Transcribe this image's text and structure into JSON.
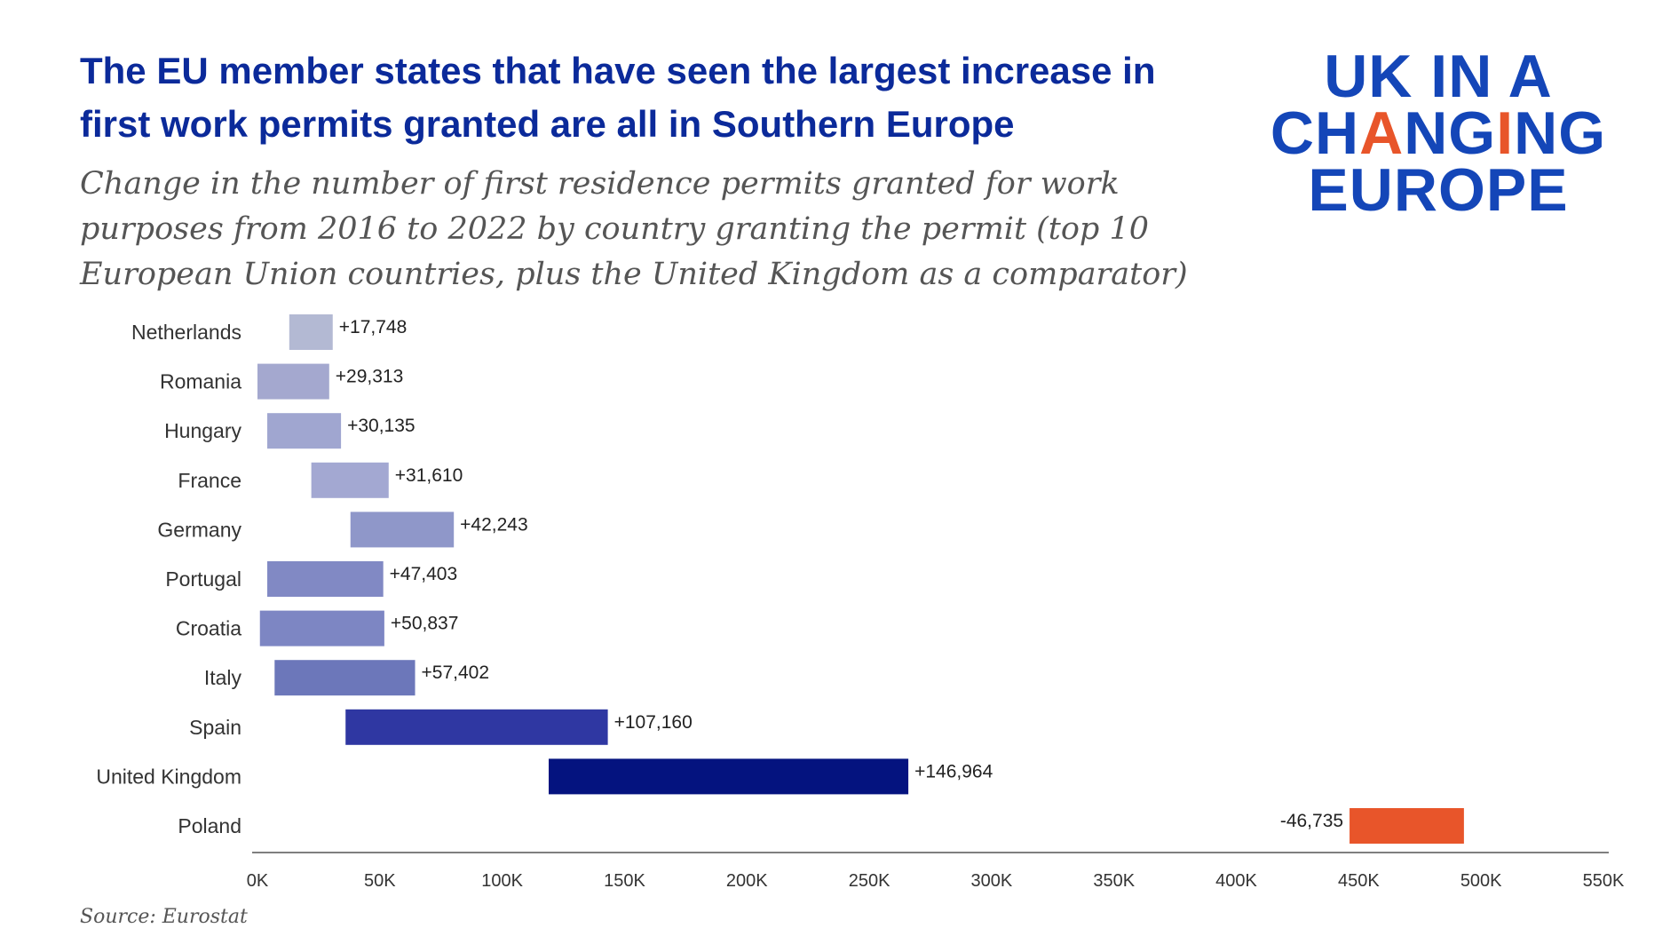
{
  "header": {
    "title": "The EU member states that have seen the largest increase in first work permits granted are all in Southern Europe",
    "subtitle": "Change in the number of first residence permits granted for work purposes from 2016 to 2022 by country granting the permit (top 10 European Union countries, plus the United Kingdom as a comparator)"
  },
  "logo": {
    "line1": "UK IN A",
    "line2_parts": [
      "CH",
      "A",
      "NG",
      "I",
      "NG"
    ],
    "line3": "EUROPE",
    "colors": {
      "blue": "#1446b8",
      "orange": "#e8552a"
    }
  },
  "source": "Source: Eurostat",
  "chart_data": {
    "type": "waterfall",
    "x_ticks": [
      "0K",
      "50K",
      "100K",
      "150K",
      "200K",
      "250K",
      "300K",
      "350K",
      "400K",
      "450K",
      "500K",
      "550K"
    ],
    "xlim": [
      0,
      550000
    ],
    "grid": false,
    "categories": [
      "Netherlands",
      "Romania",
      "Hungary",
      "France",
      "Germany",
      "Portugal",
      "Croatia",
      "Italy",
      "Spain",
      "United Kingdom",
      "Poland"
    ],
    "labels": [
      "+17,748",
      "+29,313",
      "+30,135",
      "+31,610",
      "+42,243",
      "+47,403",
      "+50,837",
      "+57,402",
      "+107,160",
      "+146,964",
      "-46,735"
    ],
    "change": [
      17748,
      29313,
      30135,
      31610,
      42243,
      47403,
      50837,
      57402,
      107160,
      146964,
      -46735
    ],
    "start_2016": [
      13000,
      0,
      4000,
      22000,
      38000,
      4000,
      1000,
      7000,
      36000,
      119000,
      493000
    ],
    "colors": [
      "#b3b9d3",
      "#a4a8cf",
      "#a0a6d0",
      "#a3a8d2",
      "#8f97c9",
      "#8189c4",
      "#7d86c3",
      "#6c77ba",
      "#2f37a2",
      "#04137f",
      "#e8552a"
    ]
  }
}
